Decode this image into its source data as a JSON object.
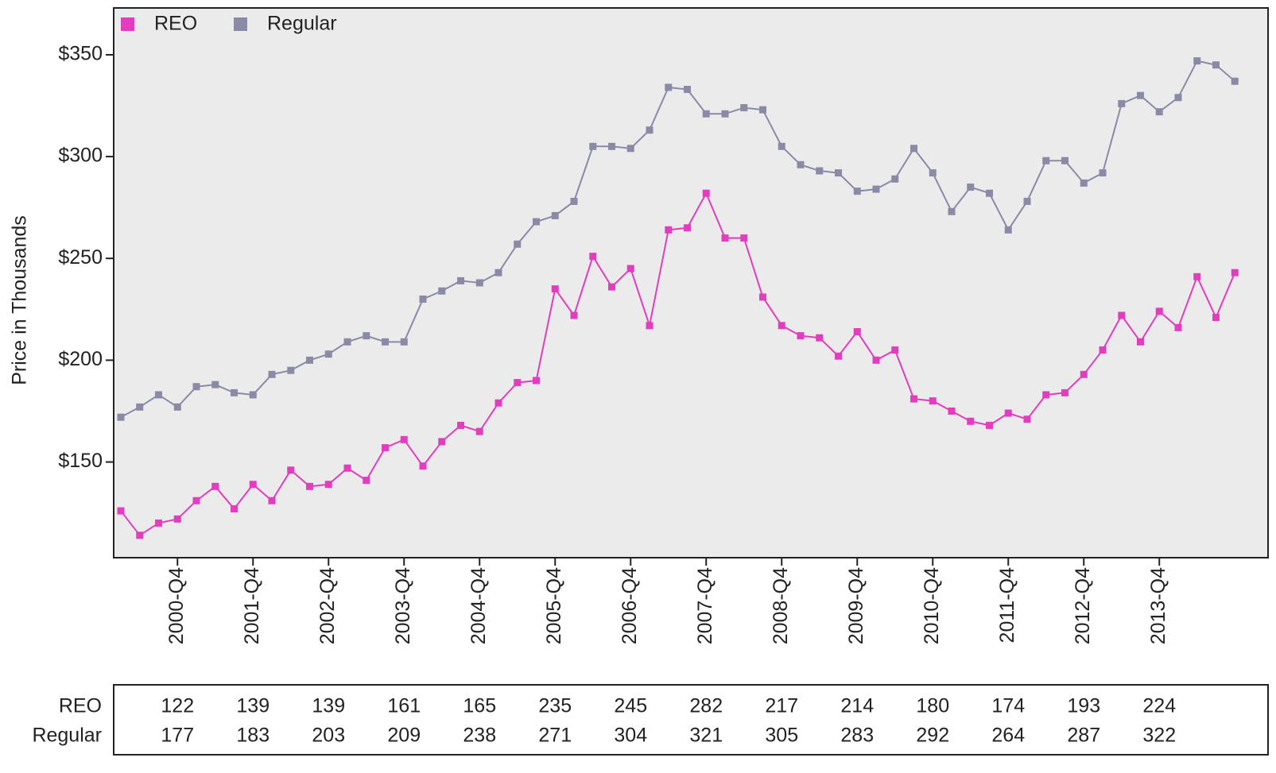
{
  "chart_data": {
    "type": "line",
    "y_label": "Price in Thousands",
    "categories": [
      null,
      null,
      null,
      "2000-Q4",
      null,
      null,
      null,
      "2001-Q4",
      null,
      null,
      null,
      "2002-Q4",
      null,
      null,
      null,
      "2003-Q4",
      null,
      null,
      null,
      "2004-Q4",
      null,
      null,
      null,
      "2005-Q4",
      null,
      null,
      null,
      "2006-Q4",
      null,
      null,
      null,
      "2007-Q4",
      null,
      null,
      null,
      "2008-Q4",
      null,
      null,
      null,
      "2009-Q4",
      null,
      null,
      null,
      "2010-Q4",
      null,
      null,
      null,
      "2011-Q4",
      null,
      null,
      null,
      "2012-Q4",
      null,
      null,
      null,
      "2013-Q4",
      null,
      null,
      null,
      null
    ],
    "series": [
      {
        "name": "REO",
        "color": "#e23cbf",
        "values": [
          126,
          114,
          120,
          122,
          131,
          138,
          127,
          139,
          131,
          146,
          138,
          139,
          147,
          141,
          157,
          161,
          148,
          160,
          168,
          165,
          179,
          189,
          190,
          235,
          222,
          251,
          236,
          245,
          217,
          264,
          265,
          282,
          260,
          260,
          231,
          217,
          212,
          211,
          202,
          214,
          200,
          205,
          181,
          180,
          175,
          170,
          168,
          174,
          171,
          183,
          184,
          193,
          205,
          222,
          209,
          224,
          216,
          241,
          221,
          243
        ]
      },
      {
        "name": "Regular",
        "color": "#8a8aa6",
        "values": [
          172,
          177,
          183,
          177,
          187,
          188,
          184,
          183,
          193,
          195,
          200,
          203,
          209,
          212,
          209,
          209,
          230,
          234,
          239,
          238,
          243,
          257,
          268,
          271,
          278,
          305,
          305,
          304,
          313,
          334,
          333,
          321,
          321,
          324,
          323,
          305,
          296,
          293,
          292,
          283,
          284,
          289,
          304,
          292,
          273,
          285,
          282,
          264,
          278,
          298,
          298,
          287,
          292,
          326,
          330,
          322,
          329,
          347,
          345,
          337
        ]
      }
    ],
    "ylim": [
      103,
      373
    ],
    "yticks": [
      {
        "value": 150,
        "label": "$150"
      },
      {
        "value": 200,
        "label": "$200"
      },
      {
        "value": 250,
        "label": "$250"
      },
      {
        "value": 300,
        "label": "$300"
      },
      {
        "value": 350,
        "label": "$350"
      }
    ],
    "legend": "top-left",
    "grid": false
  }
}
